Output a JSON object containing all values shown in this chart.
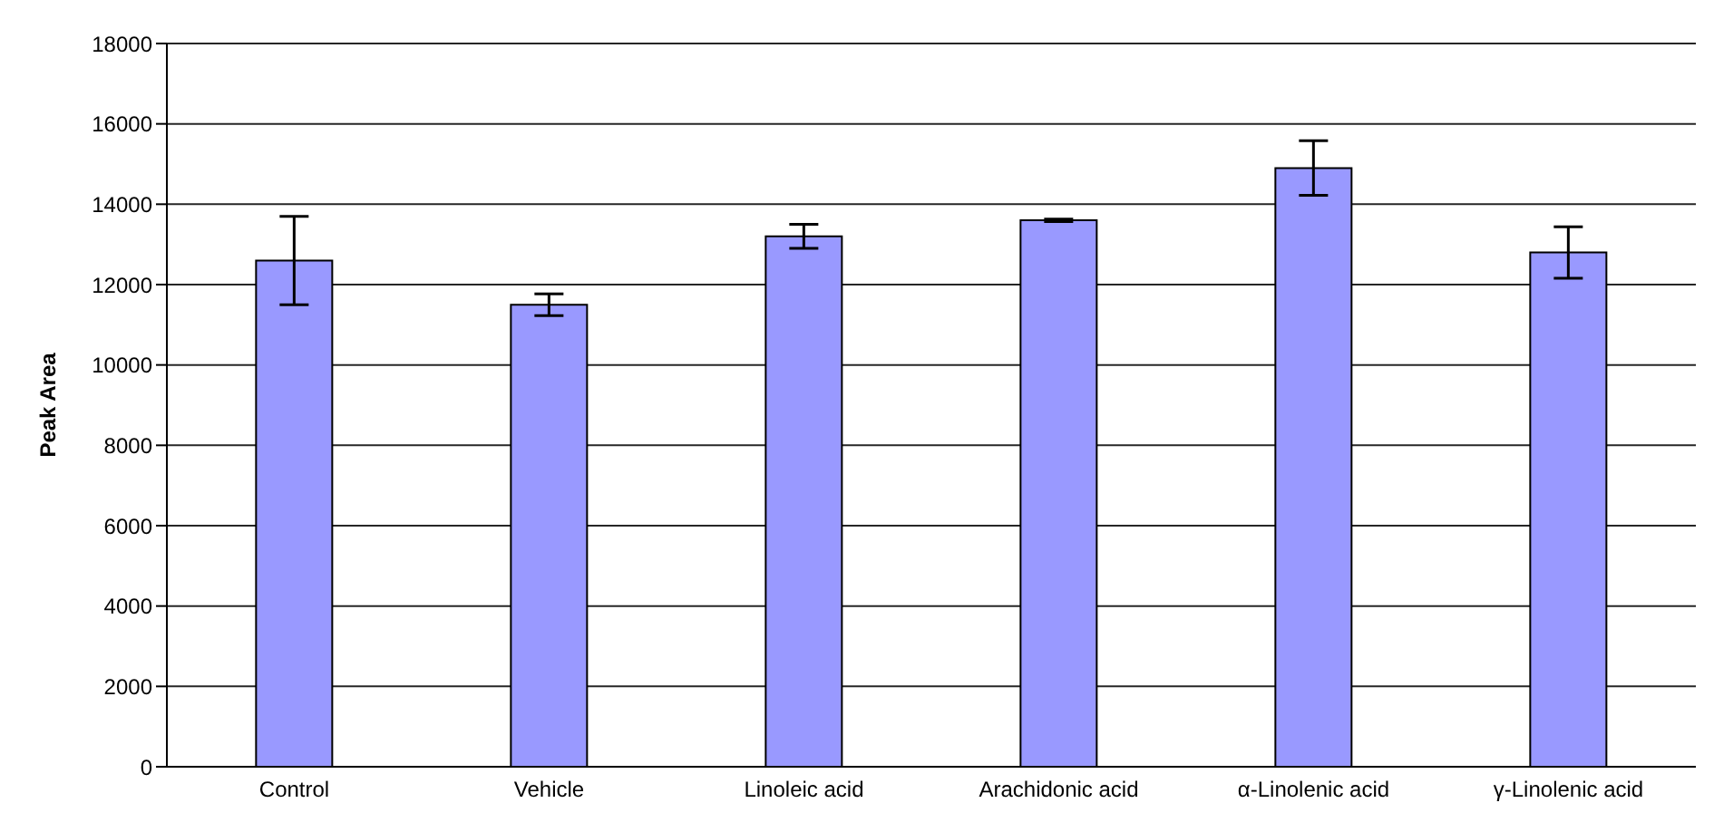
{
  "chart_data": {
    "type": "bar",
    "ylabel": "Peak Area",
    "categories": [
      "Control",
      "Vehicle",
      "Linoleic acid",
      "Arachidonic acid",
      "α-Linolenic acid",
      "γ-Linolenic acid"
    ],
    "values": [
      12600,
      11500,
      13200,
      13600,
      14900,
      12800
    ],
    "errors": [
      1100,
      270,
      300,
      30,
      680,
      640
    ],
    "color": "#9999ff",
    "ylim": [
      0,
      18000
    ],
    "yticks": [
      0,
      2000,
      4000,
      6000,
      8000,
      10000,
      12000,
      14000,
      16000,
      18000
    ],
    "grid": "y"
  }
}
